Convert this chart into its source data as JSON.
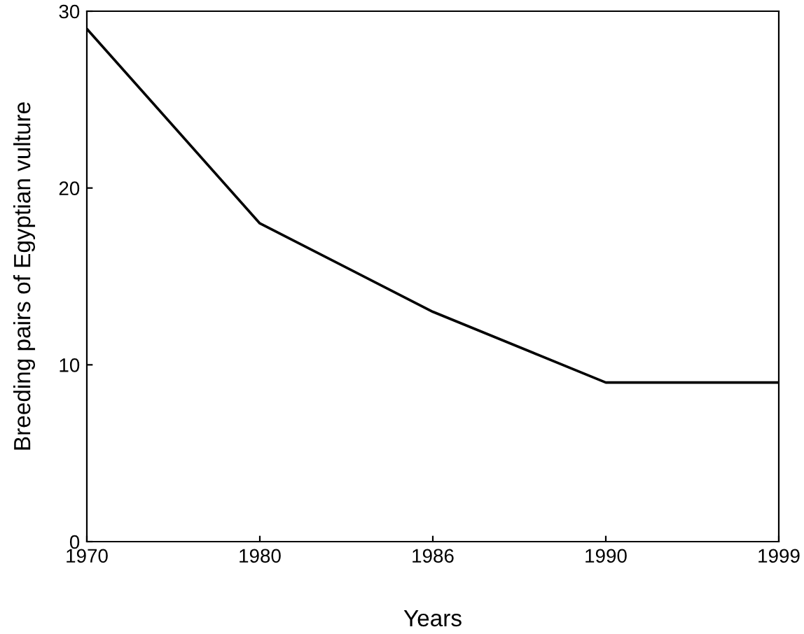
{
  "chart_data": {
    "type": "line",
    "xlabel": "Years",
    "ylabel": "Breeding pairs of Egyptian vulture",
    "categories": [
      "1970",
      "1980",
      "1986",
      "1990",
      "1999"
    ],
    "series": [
      {
        "color": "#000000",
        "values": [
          29,
          18,
          13,
          9,
          9
        ]
      }
    ],
    "ylim": [
      0,
      30
    ],
    "yticks": [
      0,
      10,
      20,
      30
    ],
    "grid": false,
    "legend": false,
    "marker": "none",
    "line_style": "solid"
  }
}
